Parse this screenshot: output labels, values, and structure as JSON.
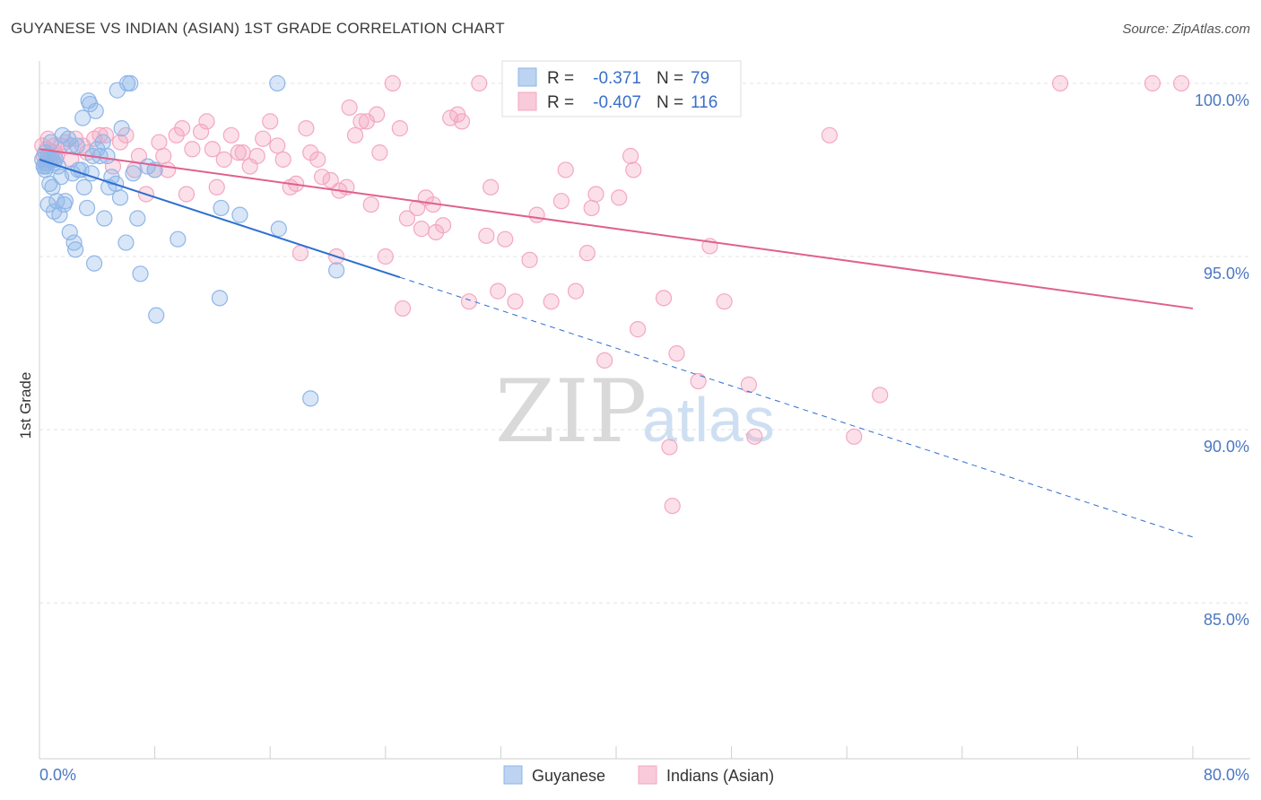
{
  "title": "GUYANESE VS INDIAN (ASIAN) 1ST GRADE CORRELATION CHART",
  "source": "Source: ZipAtlas.com",
  "watermark": {
    "zip": "ZIP",
    "atlas": "atlas"
  },
  "chart_data": {
    "type": "scatter",
    "ylabel": "1st Grade",
    "xlim": [
      0,
      80
    ],
    "ylim": [
      80.5,
      100.8
    ],
    "x_tick_labels": [
      "0.0%",
      "80.0%"
    ],
    "y_ticks": [
      100,
      95,
      90,
      85
    ],
    "y_tick_labels": [
      "100.0%",
      "95.0%",
      "90.0%",
      "85.0%"
    ],
    "grid": true,
    "legend_position": "bottom-center",
    "series": [
      {
        "name": "Guyanese",
        "color": "#8fb6e8",
        "line_color": "#2f6fd0",
        "R": "-0.371",
        "N": "79",
        "trend": {
          "x0": 0,
          "y0": 97.8,
          "x1": 25,
          "y1": 94.4,
          "dash_to_x": 80,
          "dash_to_y": 86.9
        },
        "points": [
          [
            0.2,
            97.8
          ],
          [
            0.3,
            97.6
          ],
          [
            0.4,
            98.0
          ],
          [
            0.5,
            97.7
          ],
          [
            0.6,
            96.5
          ],
          [
            0.7,
            97.1
          ],
          [
            0.8,
            98.3
          ],
          [
            0.9,
            97.0
          ],
          [
            1.0,
            96.3
          ],
          [
            1.1,
            97.8
          ],
          [
            1.2,
            96.6
          ],
          [
            1.4,
            96.2
          ],
          [
            1.5,
            97.3
          ],
          [
            1.6,
            98.5
          ],
          [
            1.7,
            96.5
          ],
          [
            1.8,
            96.6
          ],
          [
            2.0,
            98.4
          ],
          [
            2.1,
            95.7
          ],
          [
            2.2,
            98.2
          ],
          [
            2.3,
            97.4
          ],
          [
            2.4,
            95.4
          ],
          [
            2.5,
            95.2
          ],
          [
            2.6,
            98.2
          ],
          [
            2.7,
            97.5
          ],
          [
            2.9,
            97.5
          ],
          [
            3.0,
            99.0
          ],
          [
            3.1,
            97.0
          ],
          [
            3.3,
            96.4
          ],
          [
            3.4,
            99.5
          ],
          [
            3.5,
            99.4
          ],
          [
            3.6,
            97.4
          ],
          [
            3.7,
            97.9
          ],
          [
            3.8,
            94.8
          ],
          [
            3.9,
            99.2
          ],
          [
            4.0,
            98.1
          ],
          [
            4.2,
            97.9
          ],
          [
            4.4,
            98.3
          ],
          [
            4.5,
            96.1
          ],
          [
            4.7,
            97.9
          ],
          [
            4.8,
            97.0
          ],
          [
            5.0,
            97.3
          ],
          [
            5.3,
            97.1
          ],
          [
            5.4,
            99.8
          ],
          [
            5.6,
            96.7
          ],
          [
            5.7,
            98.7
          ],
          [
            6.0,
            95.4
          ],
          [
            6.1,
            100.0
          ],
          [
            6.3,
            100.0
          ],
          [
            6.5,
            97.4
          ],
          [
            6.8,
            96.1
          ],
          [
            7.0,
            94.5
          ],
          [
            7.5,
            97.6
          ],
          [
            8.0,
            97.5
          ],
          [
            8.1,
            93.3
          ],
          [
            9.6,
            95.5
          ],
          [
            12.5,
            93.8
          ],
          [
            12.6,
            96.4
          ],
          [
            13.9,
            96.2
          ],
          [
            16.5,
            100.0
          ],
          [
            16.6,
            95.8
          ],
          [
            18.8,
            90.9
          ],
          [
            20.6,
            94.6
          ],
          [
            0.4,
            97.5
          ],
          [
            0.9,
            97.8
          ],
          [
            1.3,
            97.6
          ],
          [
            0.6,
            97.9
          ],
          [
            0.3,
            97.6
          ],
          [
            0.7,
            97.8
          ],
          [
            1.0,
            97.7
          ],
          [
            0.5,
            97.6
          ]
        ]
      },
      {
        "name": "Indians (Asian)",
        "color": "#f4a7c1",
        "line_color": "#e0608e",
        "R": "-0.407",
        "N": "116",
        "trend": {
          "x0": 0,
          "y0": 98.1,
          "x1": 80,
          "y1": 93.5
        },
        "points": [
          [
            0.2,
            98.2
          ],
          [
            0.4,
            97.7
          ],
          [
            0.6,
            98.4
          ],
          [
            0.8,
            98.0
          ],
          [
            1.0,
            98.2
          ],
          [
            1.2,
            97.9
          ],
          [
            1.5,
            98.2
          ],
          [
            1.8,
            98.3
          ],
          [
            2.2,
            97.8
          ],
          [
            2.5,
            98.4
          ],
          [
            3.0,
            98.2
          ],
          [
            3.3,
            98.0
          ],
          [
            3.8,
            98.4
          ],
          [
            4.2,
            98.5
          ],
          [
            4.6,
            98.5
          ],
          [
            5.1,
            97.6
          ],
          [
            5.6,
            98.3
          ],
          [
            6.0,
            98.5
          ],
          [
            6.6,
            97.5
          ],
          [
            6.9,
            97.9
          ],
          [
            7.4,
            96.8
          ],
          [
            8.0,
            97.5
          ],
          [
            8.3,
            98.3
          ],
          [
            8.6,
            97.9
          ],
          [
            8.9,
            97.5
          ],
          [
            9.5,
            98.5
          ],
          [
            9.9,
            98.7
          ],
          [
            10.2,
            96.8
          ],
          [
            10.6,
            98.1
          ],
          [
            11.2,
            98.6
          ],
          [
            11.6,
            98.9
          ],
          [
            12.0,
            98.1
          ],
          [
            12.3,
            97.0
          ],
          [
            12.8,
            97.8
          ],
          [
            13.3,
            98.5
          ],
          [
            13.8,
            98.0
          ],
          [
            14.1,
            98.0
          ],
          [
            14.6,
            97.6
          ],
          [
            15.1,
            97.9
          ],
          [
            15.5,
            98.4
          ],
          [
            16.0,
            98.9
          ],
          [
            16.5,
            98.2
          ],
          [
            16.9,
            97.8
          ],
          [
            17.4,
            97.0
          ],
          [
            17.8,
            97.1
          ],
          [
            18.1,
            95.1
          ],
          [
            18.5,
            98.7
          ],
          [
            18.8,
            98.0
          ],
          [
            19.3,
            97.8
          ],
          [
            19.6,
            97.3
          ],
          [
            20.2,
            97.2
          ],
          [
            20.6,
            95.0
          ],
          [
            20.8,
            96.9
          ],
          [
            21.3,
            97.0
          ],
          [
            21.5,
            99.3
          ],
          [
            21.9,
            98.5
          ],
          [
            22.3,
            98.9
          ],
          [
            22.7,
            98.9
          ],
          [
            23.0,
            96.5
          ],
          [
            23.4,
            99.1
          ],
          [
            23.6,
            98.0
          ],
          [
            24.0,
            95.0
          ],
          [
            24.5,
            100.0
          ],
          [
            25.0,
            98.7
          ],
          [
            25.2,
            93.5
          ],
          [
            25.5,
            96.1
          ],
          [
            26.2,
            96.4
          ],
          [
            26.5,
            95.8
          ],
          [
            26.8,
            96.7
          ],
          [
            27.3,
            96.5
          ],
          [
            27.5,
            95.7
          ],
          [
            28.0,
            95.9
          ],
          [
            28.5,
            99.0
          ],
          [
            29.0,
            99.1
          ],
          [
            29.3,
            98.9
          ],
          [
            29.8,
            93.7
          ],
          [
            30.5,
            100.0
          ],
          [
            31.0,
            95.6
          ],
          [
            31.3,
            97.0
          ],
          [
            31.8,
            94.0
          ],
          [
            32.3,
            95.5
          ],
          [
            33.0,
            93.7
          ],
          [
            34.0,
            94.9
          ],
          [
            34.5,
            96.2
          ],
          [
            35.5,
            93.7
          ],
          [
            36.2,
            96.6
          ],
          [
            36.5,
            97.5
          ],
          [
            37.2,
            94.0
          ],
          [
            38.0,
            95.1
          ],
          [
            38.3,
            96.4
          ],
          [
            38.6,
            96.8
          ],
          [
            39.2,
            92.0
          ],
          [
            40.2,
            96.7
          ],
          [
            41.0,
            97.9
          ],
          [
            41.2,
            97.5
          ],
          [
            41.5,
            92.9
          ],
          [
            43.3,
            93.8
          ],
          [
            43.7,
            89.5
          ],
          [
            43.9,
            87.8
          ],
          [
            44.2,
            92.2
          ],
          [
            45.7,
            91.4
          ],
          [
            46.5,
            95.3
          ],
          [
            47.5,
            93.7
          ],
          [
            49.2,
            91.3
          ],
          [
            49.6,
            89.8
          ],
          [
            54.8,
            98.5
          ],
          [
            56.5,
            89.8
          ],
          [
            58.3,
            91.0
          ],
          [
            70.8,
            100.0
          ],
          [
            77.2,
            100.0
          ],
          [
            79.2,
            100.0
          ],
          [
            0.5,
            98.1
          ],
          [
            1.1,
            98.0
          ],
          [
            0.3,
            97.9
          ]
        ]
      }
    ]
  }
}
